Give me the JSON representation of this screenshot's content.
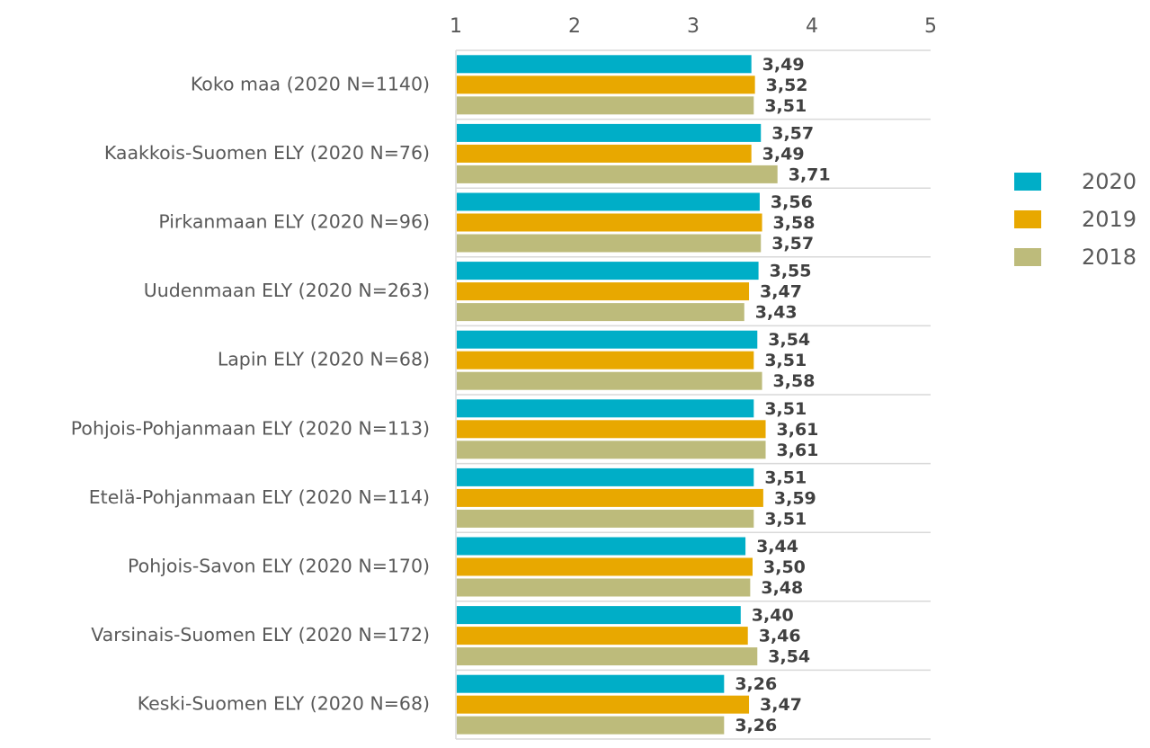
{
  "chart_data": {
    "type": "bar",
    "orientation": "horizontal",
    "xlim": [
      1,
      5
    ],
    "x_ticks": [
      "1",
      "2",
      "3",
      "4",
      "5"
    ],
    "tick_position": "top",
    "grid": false,
    "legend_placement": "right",
    "categories": [
      "Koko maa (2020 N=1140)",
      "Kaakkois-Suomen ELY (2020 N=76)",
      "Pirkanmaan ELY (2020 N=96)",
      "Uudenmaan ELY (2020 N=263)",
      "Lapin ELY (2020 N=68)",
      "Pohjois-Pohjanmaan ELY (2020 N=113)",
      "Etelä-Pohjanmaan ELY (2020 N=114)",
      "Pohjois-Savon ELY (2020 N=170)",
      "Varsinais-Suomen ELY (2020 N=172)",
      "Keski-Suomen ELY (2020 N=68)"
    ],
    "series": [
      {
        "name": "2020",
        "color": "#00AEC7",
        "values": [
          3.49,
          3.57,
          3.56,
          3.55,
          3.54,
          3.51,
          3.51,
          3.44,
          3.4,
          3.26
        ],
        "labels": [
          "3,49",
          "3,57",
          "3,56",
          "3,55",
          "3,54",
          "3,51",
          "3,51",
          "3,44",
          "3,40",
          "3,26"
        ]
      },
      {
        "name": "2019",
        "color": "#E8A800",
        "values": [
          3.52,
          3.49,
          3.58,
          3.47,
          3.51,
          3.61,
          3.59,
          3.5,
          3.46,
          3.47
        ],
        "labels": [
          "3,52",
          "3,49",
          "3,58",
          "3,47",
          "3,51",
          "3,61",
          "3,59",
          "3,50",
          "3,46",
          "3,47"
        ]
      },
      {
        "name": "2018",
        "color": "#BDBB7B",
        "values": [
          3.51,
          3.71,
          3.57,
          3.43,
          3.58,
          3.61,
          3.51,
          3.48,
          3.54,
          3.26
        ],
        "labels": [
          "3,51",
          "3,71",
          "3,57",
          "3,43",
          "3,58",
          "3,61",
          "3,51",
          "3,48",
          "3,54",
          "3,26"
        ]
      }
    ]
  }
}
